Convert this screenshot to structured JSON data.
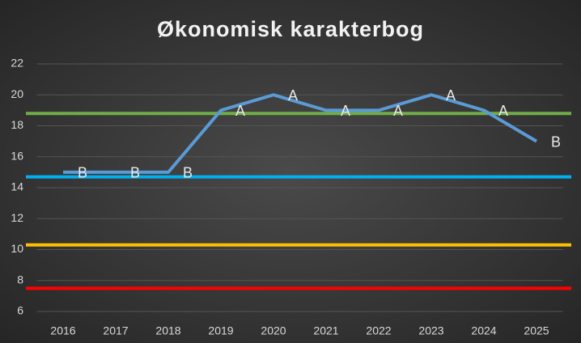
{
  "chart_data": {
    "type": "line",
    "title": "Økonomisk karakterbog",
    "categories": [
      "2016",
      "2017",
      "2018",
      "2019",
      "2020",
      "2021",
      "2022",
      "2023",
      "2024",
      "2025"
    ],
    "series": [
      {
        "color": "#5b9bd5",
        "values": [
          15,
          15,
          15,
          19,
          20,
          19,
          19,
          20,
          19,
          17
        ],
        "value_labels": [
          "B",
          "B",
          "B",
          "A",
          "A",
          "A",
          "A",
          "A",
          "A",
          "B"
        ]
      }
    ],
    "reference_lines": [
      {
        "value": 18.8,
        "color": "#70ad47"
      },
      {
        "value": 14.7,
        "color": "#00b0f0"
      },
      {
        "value": 10.3,
        "color": "#ffc000"
      },
      {
        "value": 7.5,
        "color": "#ff0000"
      }
    ],
    "ylim": [
      6,
      22
    ],
    "yticks": [
      6,
      8,
      10,
      12,
      14,
      16,
      18,
      20,
      22
    ],
    "grid": true
  }
}
